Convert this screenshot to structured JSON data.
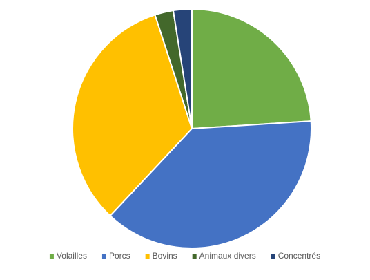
{
  "chart_data": {
    "type": "pie",
    "categories": [
      "Volailles",
      "Porcs",
      "Bovins",
      "Animaux divers",
      "Concentrés"
    ],
    "values": [
      24,
      38,
      33,
      2.5,
      2.5
    ],
    "colors": [
      "#70ad47",
      "#4472c4",
      "#ffc000",
      "#43682b",
      "#264478"
    ],
    "legend": "bottom"
  }
}
